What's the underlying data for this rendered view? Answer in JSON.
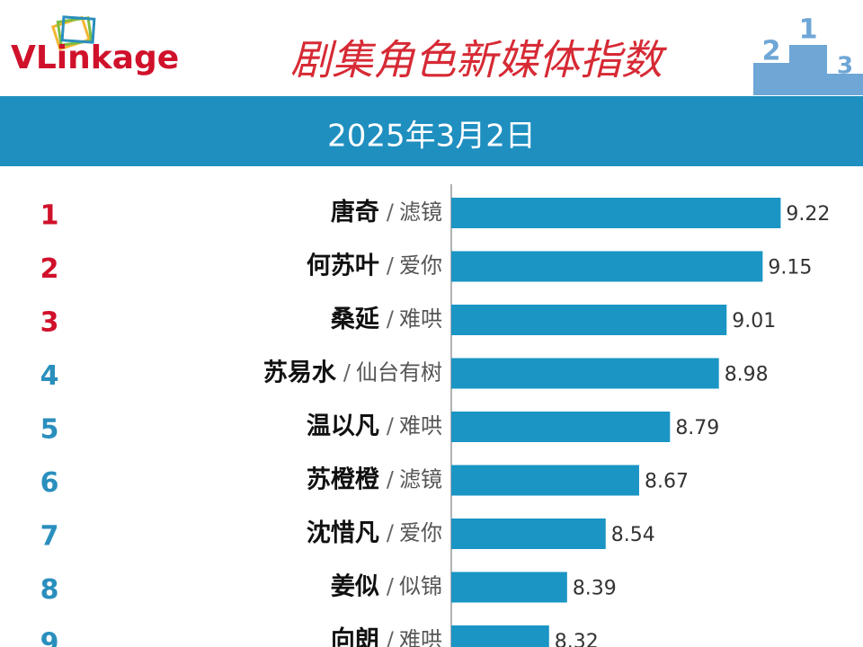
{
  "logo": "VLinkage",
  "chart_data": {
    "type": "bar",
    "orientation": "horizontal",
    "title": "剧集角色新媒体指数",
    "subtitle": "2025年3月2日",
    "ranks": [
      1,
      2,
      3,
      4,
      5,
      6,
      7,
      8,
      9
    ],
    "rank_colors": [
      "#d0112b",
      "#d0112b",
      "#d0112b",
      "#2a8fbd",
      "#2a8fbd",
      "#2a8fbd",
      "#2a8fbd",
      "#2a8fbd",
      "#2a8fbd"
    ],
    "categories": [
      "唐奇",
      "何苏叶",
      "桑延",
      "苏易水",
      "温以凡",
      "苏橙橙",
      "沈惜凡",
      "姜似",
      "向朗"
    ],
    "separator": "/",
    "shows": [
      "滤镜",
      "爱你",
      "难哄",
      "仙台有树",
      "难哄",
      "滤镜",
      "爱你",
      "似锦",
      "难哄"
    ],
    "values": [
      9.22,
      9.15,
      9.01,
      8.98,
      8.79,
      8.67,
      8.54,
      8.39,
      8.32
    ],
    "color": "#1a95c4",
    "xlim": [
      7.94,
      9.54
    ]
  }
}
